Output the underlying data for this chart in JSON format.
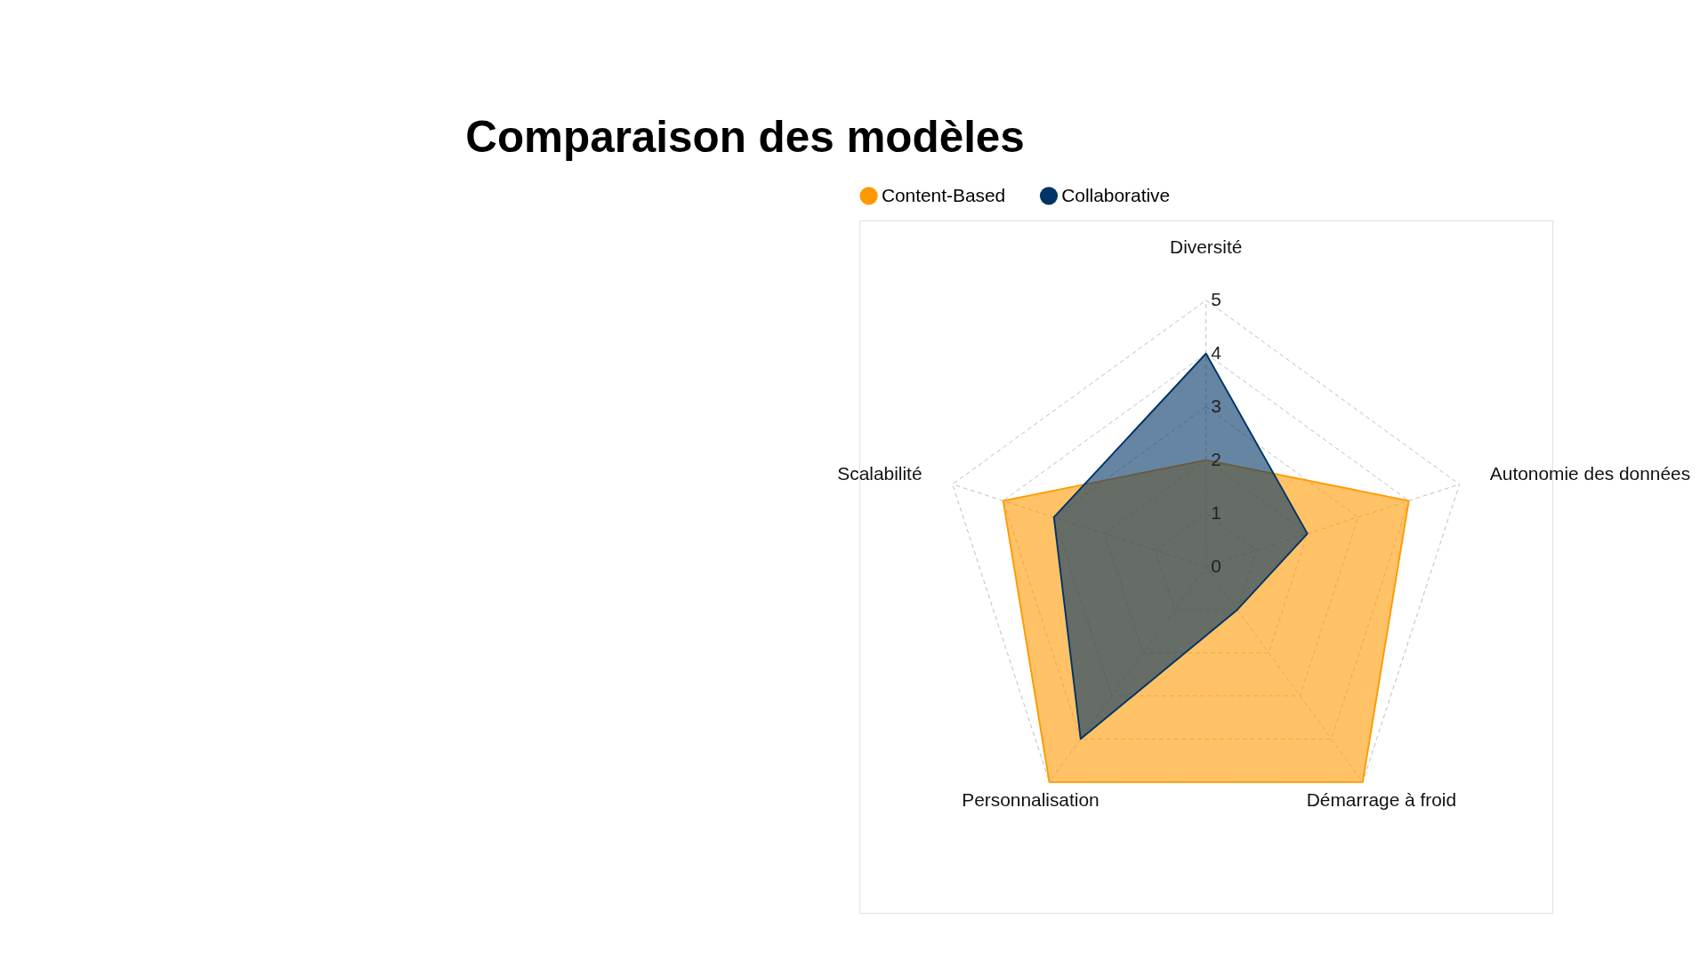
{
  "chart_data": {
    "type": "radar",
    "title": "Comparaison des modèles",
    "categories": [
      "Diversité",
      "Autonomie des données",
      "Démarrage à froid",
      "Personnalisation",
      "Scalabilité"
    ],
    "series": [
      {
        "name": "Content-Based",
        "color": "#ff9900",
        "values": [
          2,
          4,
          5,
          5,
          4
        ]
      },
      {
        "name": "Collaborative",
        "color": "#003366",
        "values": [
          4,
          2,
          1,
          4,
          3
        ]
      }
    ],
    "ylim": [
      0,
      5
    ],
    "yticks": [
      0,
      1,
      2,
      3,
      4,
      5
    ],
    "grid": true,
    "legend": "top",
    "marker": "none",
    "line_style": "solid"
  }
}
